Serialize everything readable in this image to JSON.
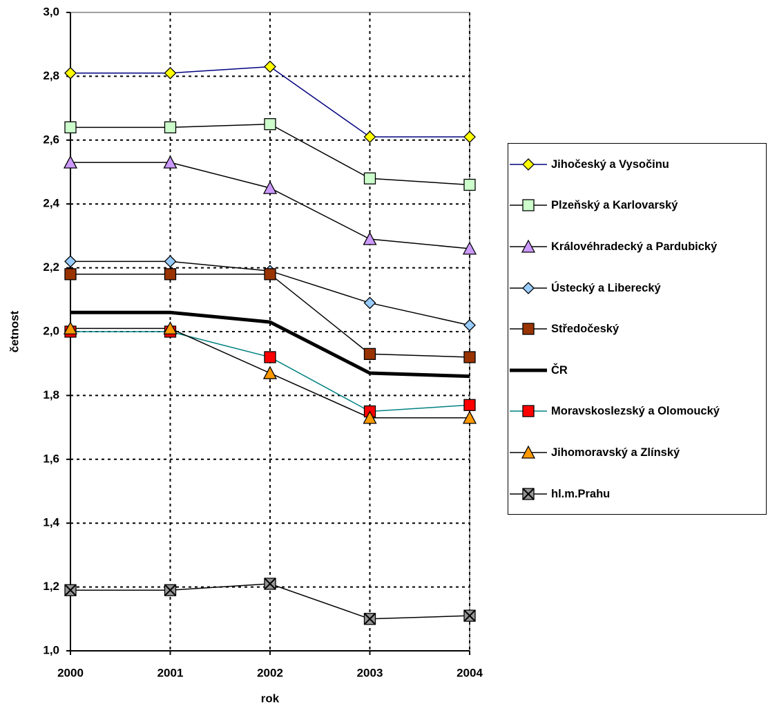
{
  "chart_data": {
    "type": "line",
    "x_label": "rok",
    "y_label": "četnost",
    "categories": [
      "2000",
      "2001",
      "2002",
      "2003",
      "2004"
    ],
    "ylim": [
      1.0,
      3.0
    ],
    "yticks": [
      {
        "value": 1.0,
        "label": "1,0"
      },
      {
        "value": 1.2,
        "label": "1,2"
      },
      {
        "value": 1.4,
        "label": "1,4"
      },
      {
        "value": 1.6,
        "label": "1,6"
      },
      {
        "value": 1.8,
        "label": "1,8"
      },
      {
        "value": 2.0,
        "label": "2,0"
      },
      {
        "value": 2.2,
        "label": "2,2"
      },
      {
        "value": 2.4,
        "label": "2,4"
      },
      {
        "value": 2.6,
        "label": "2,6"
      },
      {
        "value": 2.8,
        "label": "2,8"
      },
      {
        "value": 3.0,
        "label": "3,0"
      }
    ],
    "grid": true,
    "legend": "right",
    "series": [
      {
        "name": "Jihočeský a Vysočinu",
        "color": "#000080",
        "marker": "diamond",
        "marker_color": "#ffff00",
        "values": [
          2.81,
          2.81,
          2.83,
          2.61,
          2.61
        ]
      },
      {
        "name": "Plzeňský a Karlovarský",
        "color": "#000000",
        "marker": "square",
        "marker_color": "#ccffcc",
        "values": [
          2.64,
          2.64,
          2.65,
          2.48,
          2.46
        ]
      },
      {
        "name": "Královéhradecký a Pardubický",
        "color": "#000000",
        "marker": "triangle",
        "marker_color": "#cc99ff",
        "values": [
          2.53,
          2.53,
          2.45,
          2.29,
          2.26
        ]
      },
      {
        "name": "Ústecký a Liberecký",
        "color": "#000000",
        "marker": "diamond",
        "marker_color": "#99ccff",
        "values": [
          2.22,
          2.22,
          2.19,
          2.09,
          2.02
        ]
      },
      {
        "name": "Středočeský",
        "color": "#000000",
        "marker": "square",
        "marker_color": "#993300",
        "values": [
          2.18,
          2.18,
          2.18,
          1.93,
          1.92
        ]
      },
      {
        "name": "ČR",
        "color": "#000000",
        "marker": "none",
        "line_width": 5,
        "values": [
          2.06,
          2.06,
          2.03,
          1.87,
          1.86
        ]
      },
      {
        "name": "Moravskoslezský a Olomoucký",
        "color": "#008080",
        "marker": "square",
        "marker_color": "#ff0000",
        "values": [
          2.0,
          2.0,
          1.92,
          1.75,
          1.77
        ]
      },
      {
        "name": "Jihomoravský a Zlínský",
        "color": "#000000",
        "marker": "triangle",
        "marker_color": "#ff9900",
        "values": [
          2.01,
          2.01,
          1.87,
          1.73,
          1.73
        ]
      },
      {
        "name": "hl.m.Prahu",
        "color": "#000000",
        "marker": "xsquare",
        "marker_color": "#969696",
        "values": [
          1.19,
          1.19,
          1.21,
          1.1,
          1.11
        ]
      }
    ]
  }
}
